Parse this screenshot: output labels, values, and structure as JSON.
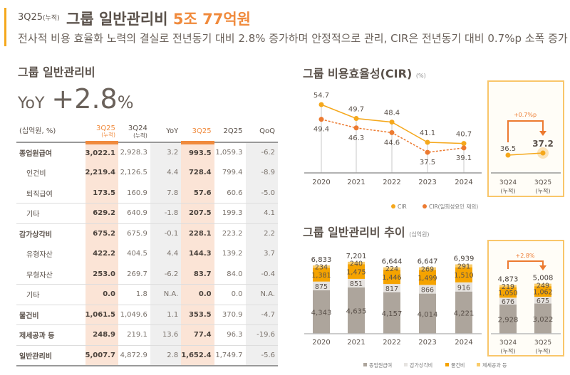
{
  "header": {
    "tag": "3Q25",
    "tag_note": "(누적)",
    "title": "그룹 일반관리비",
    "highlight": "5조 77억원",
    "subtitle": "전사적 비용 효율화 노력의 결실로 전년동기 대비 2.8% 증가하며 안정적으로 관리, CIR은 전년동기 대비 0.7%p 소폭 증가"
  },
  "left": {
    "title": "그룹 일반관리비",
    "yoy_label": "YoY",
    "yoy_value": "+2.8",
    "yoy_unit": "%"
  },
  "table": {
    "headers": [
      {
        "t": "(십억원, %)",
        "n": ""
      },
      {
        "t": "3Q25",
        "n": "(누적)"
      },
      {
        "t": "3Q24",
        "n": "(누적)"
      },
      {
        "t": "YoY",
        "n": ""
      },
      {
        "t": "3Q25",
        "n": ""
      },
      {
        "t": "2Q25",
        "n": ""
      },
      {
        "t": "QoQ",
        "n": ""
      }
    ],
    "rows": [
      {
        "label": "종업원급여",
        "sub": false,
        "v": [
          "3,022.1",
          "2,928.3",
          "3.2",
          "993.5",
          "1,059.3",
          "-6.2"
        ]
      },
      {
        "label": "인건비",
        "sub": true,
        "v": [
          "2,219.4",
          "2,126.5",
          "4.4",
          "728.4",
          "799.4",
          "-8.9"
        ]
      },
      {
        "label": "퇴직급여",
        "sub": true,
        "v": [
          "173.5",
          "160.9",
          "7.8",
          "57.6",
          "60.6",
          "-5.0"
        ]
      },
      {
        "label": "기타",
        "sub": true,
        "v": [
          "629.2",
          "640.9",
          "-1.8",
          "207.5",
          "199.3",
          "4.1"
        ]
      },
      {
        "label": "감가상각비",
        "sub": false,
        "v": [
          "675.2",
          "675.9",
          "-0.1",
          "228.1",
          "223.2",
          "2.2"
        ]
      },
      {
        "label": "유형자산",
        "sub": true,
        "v": [
          "422.2",
          "404.5",
          "4.4",
          "144.3",
          "139.2",
          "3.7"
        ]
      },
      {
        "label": "무형자산",
        "sub": true,
        "v": [
          "253.0",
          "269.7",
          "-6.2",
          "83.7",
          "84.0",
          "-0.4"
        ]
      },
      {
        "label": "기타",
        "sub": true,
        "v": [
          "0.0",
          "1.8",
          "N.A.",
          "0.0",
          "0.0",
          "N.A."
        ]
      },
      {
        "label": "물건비",
        "sub": false,
        "v": [
          "1,061.5",
          "1,049.6",
          "1.1",
          "353.5",
          "370.9",
          "-4.7"
        ]
      },
      {
        "label": "제세공과 등",
        "sub": false,
        "v": [
          "248.9",
          "219.1",
          "13.6",
          "77.4",
          "96.3",
          "-19.6"
        ]
      },
      {
        "label": "일반관리비",
        "sub": false,
        "v": [
          "5,007.7",
          "4,872.9",
          "2.8",
          "1,652.4",
          "1,749.7",
          "-5.6"
        ]
      }
    ]
  },
  "chart_data": [
    {
      "type": "line",
      "title": "그룹 비용효율성(CIR)",
      "unit": "(%)",
      "categories": [
        "2020",
        "2021",
        "2022",
        "2023",
        "2024"
      ],
      "series": [
        {
          "name": "CIR",
          "values": [
            54.7,
            49.7,
            48.4,
            41.1,
            40.7
          ],
          "color": "#F5A81C"
        },
        {
          "name": "CIR(일회성요인 제외)",
          "values": [
            49.4,
            46.3,
            44.6,
            37.5,
            39.1
          ],
          "color": "#EC7A30"
        }
      ],
      "inset": {
        "categories": [
          "3Q24",
          "3Q25"
        ],
        "cat_note": "(누적)",
        "values": [
          36.5,
          37.2
        ],
        "change": "+0.7%p"
      }
    },
    {
      "type": "bar",
      "stacked": true,
      "title": "그룹 일반관리비 추이",
      "unit": "(십억원)",
      "categories": [
        "2020",
        "2021",
        "2022",
        "2023",
        "2024"
      ],
      "series": [
        {
          "name": "종업원급여",
          "values": [
            4343,
            4635,
            4157,
            4014,
            4221
          ],
          "color": "#ADA59C"
        },
        {
          "name": "감가상각비",
          "values": [
            875,
            851,
            817,
            866,
            916
          ],
          "color": "#E6E3E0"
        },
        {
          "name": "물건비",
          "values": [
            1381,
            1475,
            1446,
            1499,
            1510
          ],
          "color": "#F5A300"
        },
        {
          "name": "제세공과 등",
          "values": [
            234,
            240,
            224,
            269,
            291
          ],
          "color": "#F9CC6B"
        }
      ],
      "totals": [
        6833,
        7201,
        6644,
        6647,
        6939
      ],
      "inset": {
        "categories": [
          "3Q24",
          "3Q25"
        ],
        "cat_note": "(누적)",
        "series_values": [
          [
            2928,
            3022
          ],
          [
            676,
            675
          ],
          [
            1050,
            1062
          ],
          [
            219,
            249
          ]
        ],
        "totals": [
          4873,
          5008
        ],
        "change": "+2.8%"
      }
    }
  ]
}
